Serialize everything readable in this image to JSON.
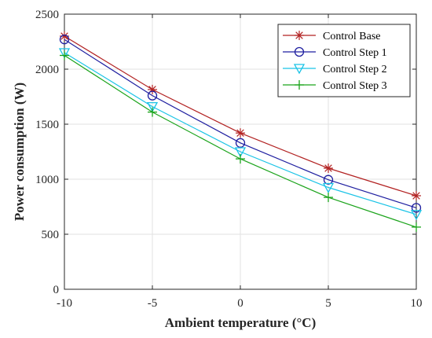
{
  "chart_data": {
    "type": "line",
    "title": "",
    "xlabel": "Ambient temperature (°C)",
    "ylabel": "Power consumption (W)",
    "x": [
      -10,
      -5,
      0,
      5,
      10
    ],
    "xlim": [
      -10,
      10
    ],
    "ylim": [
      0,
      2500
    ],
    "xticks": [
      -10,
      -5,
      0,
      5,
      10
    ],
    "yticks": [
      0,
      500,
      1000,
      1500,
      2000,
      2500
    ],
    "xtick_labels": [
      "-10",
      "-5",
      "0",
      "5",
      "10"
    ],
    "ytick_labels": [
      "0",
      "500",
      "1000",
      "1500",
      "2000",
      "2500"
    ],
    "grid": true,
    "legend_position": "top-right",
    "series": [
      {
        "name": "Control Base",
        "values": [
          2300,
          1815,
          1420,
          1100,
          850
        ],
        "color": "#b22222",
        "marker": "asterisk"
      },
      {
        "name": "Control Step 1",
        "values": [
          2270,
          1760,
          1330,
          995,
          740
        ],
        "color": "#1f1fa0",
        "marker": "circle"
      },
      {
        "name": "Control Step 2",
        "values": [
          2150,
          1660,
          1250,
          925,
          680
        ],
        "color": "#19c3e6",
        "marker": "triangle-down"
      },
      {
        "name": "Control Step 3",
        "values": [
          2125,
          1610,
          1185,
          835,
          565
        ],
        "color": "#1aa31a",
        "marker": "plus"
      }
    ]
  }
}
